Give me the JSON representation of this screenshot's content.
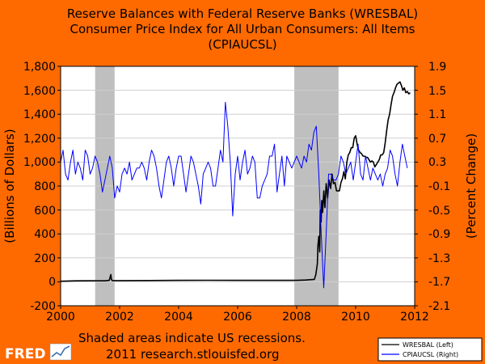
{
  "chart_data": {
    "type": "line",
    "title_lines": [
      "Reserve Balances with Federal Reserve Banks (WRESBAL)",
      "Consumer Price Index for All Urban Consumers: All Items",
      "(CPIAUCSL)"
    ],
    "xlabel": "",
    "ylabel_left": "(Billions of Dollars)",
    "ylabel_right": "(Percent Change)",
    "xlim": [
      2000,
      2012
    ],
    "ylim_left": [
      -200,
      1800
    ],
    "ylim_right": [
      -2.1,
      1.9
    ],
    "x_ticks": [
      "2000",
      "2002",
      "2004",
      "2006",
      "2008",
      "2010",
      "2012"
    ],
    "x_tick_values": [
      2000,
      2002,
      2004,
      2006,
      2008,
      2010,
      2012
    ],
    "y_left_ticks": [
      "-200",
      "0",
      "200",
      "400",
      "600",
      "800",
      "1,000",
      "1,200",
      "1,400",
      "1,600",
      "1,800"
    ],
    "y_left_tick_values": [
      -200,
      0,
      200,
      400,
      600,
      800,
      1000,
      1200,
      1400,
      1600,
      1800
    ],
    "y_right_ticks": [
      "-2.1",
      "-1.7",
      "-1.3",
      "-0.9",
      "-0.5",
      "-0.1",
      "0.3",
      "0.7",
      "1.1",
      "1.5",
      "1.9"
    ],
    "y_right_tick_values": [
      -2.1,
      -1.7,
      -1.3,
      -0.9,
      -0.5,
      -0.1,
      0.3,
      0.7,
      1.1,
      1.5,
      1.9
    ],
    "grid": true,
    "recessions": [
      [
        2001.17,
        2001.83
      ],
      [
        2007.92,
        2009.42
      ]
    ],
    "series": [
      {
        "name": "WRESBAL (Left)",
        "axis": "left",
        "color": "#000000",
        "x": [
          2000.0,
          2000.5,
          2001.0,
          2001.5,
          2001.65,
          2001.7,
          2001.72,
          2001.75,
          2002.0,
          2003.0,
          2004.0,
          2005.0,
          2006.0,
          2007.0,
          2008.0,
          2008.3,
          2008.6,
          2008.65,
          2008.7,
          2008.72,
          2008.75,
          2008.78,
          2008.8,
          2008.83,
          2008.85,
          2008.88,
          2008.92,
          2008.96,
          2009.0,
          2009.05,
          2009.1,
          2009.15,
          2009.2,
          2009.25,
          2009.3,
          2009.35,
          2009.4,
          2009.45,
          2009.5,
          2009.55,
          2009.6,
          2009.65,
          2009.7,
          2009.75,
          2009.8,
          2009.85,
          2009.9,
          2009.95,
          2010.0,
          2010.05,
          2010.1,
          2010.15,
          2010.2,
          2010.25,
          2010.3,
          2010.35,
          2010.4,
          2010.45,
          2010.5,
          2010.55,
          2010.6,
          2010.65,
          2010.7,
          2010.75,
          2010.8,
          2010.85,
          2010.9,
          2010.95,
          2011.0,
          2011.05,
          2011.1,
          2011.15,
          2011.2,
          2011.25,
          2011.3,
          2011.35,
          2011.4,
          2011.45,
          2011.5,
          2011.55,
          2011.6,
          2011.65,
          2011.7,
          2011.75,
          2011.8,
          2011.85
        ],
        "values": [
          5,
          8,
          9,
          8,
          12,
          60,
          20,
          10,
          10,
          11,
          12,
          13,
          12,
          12,
          12,
          15,
          20,
          60,
          150,
          300,
          380,
          250,
          600,
          500,
          680,
          580,
          760,
          620,
          820,
          700,
          850,
          780,
          900,
          820,
          830,
          760,
          760,
          760,
          830,
          860,
          920,
          860,
          1000,
          1060,
          1080,
          1120,
          1120,
          1200,
          1220,
          1150,
          1100,
          1080,
          1070,
          1050,
          1050,
          1040,
          1040,
          1020,
          1000,
          1010,
          1000,
          960,
          980,
          1000,
          1020,
          1060,
          1060,
          1080,
          1160,
          1260,
          1350,
          1400,
          1480,
          1550,
          1580,
          1620,
          1650,
          1660,
          1670,
          1640,
          1600,
          1620,
          1580,
          1590,
          1570,
          1580
        ]
      },
      {
        "name": "CPIAUCSL (Right)",
        "axis": "right",
        "color": "#0000ff",
        "x": [
          2000.0,
          2000.083,
          2000.167,
          2000.25,
          2000.333,
          2000.417,
          2000.5,
          2000.583,
          2000.667,
          2000.75,
          2000.833,
          2000.917,
          2001.0,
          2001.083,
          2001.167,
          2001.25,
          2001.333,
          2001.417,
          2001.5,
          2001.583,
          2001.667,
          2001.75,
          2001.833,
          2001.917,
          2002.0,
          2002.083,
          2002.167,
          2002.25,
          2002.333,
          2002.417,
          2002.5,
          2002.583,
          2002.667,
          2002.75,
          2002.833,
          2002.917,
          2003.0,
          2003.083,
          2003.167,
          2003.25,
          2003.333,
          2003.417,
          2003.5,
          2003.583,
          2003.667,
          2003.75,
          2003.833,
          2003.917,
          2004.0,
          2004.083,
          2004.167,
          2004.25,
          2004.333,
          2004.417,
          2004.5,
          2004.583,
          2004.667,
          2004.75,
          2004.833,
          2004.917,
          2005.0,
          2005.083,
          2005.167,
          2005.25,
          2005.333,
          2005.417,
          2005.5,
          2005.583,
          2005.667,
          2005.75,
          2005.833,
          2005.917,
          2006.0,
          2006.083,
          2006.167,
          2006.25,
          2006.333,
          2006.417,
          2006.5,
          2006.583,
          2006.667,
          2006.75,
          2006.833,
          2006.917,
          2007.0,
          2007.083,
          2007.167,
          2007.25,
          2007.333,
          2007.417,
          2007.5,
          2007.583,
          2007.667,
          2007.75,
          2007.833,
          2007.917,
          2008.0,
          2008.083,
          2008.167,
          2008.25,
          2008.333,
          2008.417,
          2008.5,
          2008.583,
          2008.667,
          2008.75,
          2008.833,
          2008.917,
          2009.0,
          2009.083,
          2009.167,
          2009.25,
          2009.333,
          2009.417,
          2009.5,
          2009.583,
          2009.667,
          2009.75,
          2009.833,
          2009.917,
          2010.0,
          2010.083,
          2010.167,
          2010.25,
          2010.333,
          2010.417,
          2010.5,
          2010.583,
          2010.667,
          2010.75,
          2010.833,
          2010.917,
          2011.0,
          2011.083,
          2011.167,
          2011.25,
          2011.333,
          2011.417,
          2011.5,
          2011.583,
          2011.667,
          2011.75
        ],
        "values": [
          0.3,
          0.5,
          0.1,
          0.0,
          0.3,
          0.5,
          0.1,
          0.3,
          0.2,
          0.0,
          0.5,
          0.4,
          0.1,
          0.2,
          0.4,
          0.3,
          0.1,
          -0.2,
          0.0,
          0.2,
          0.4,
          0.2,
          -0.3,
          -0.1,
          -0.2,
          0.1,
          0.2,
          0.1,
          0.3,
          0.0,
          0.1,
          0.2,
          0.2,
          0.3,
          0.2,
          0.0,
          0.3,
          0.5,
          0.4,
          0.2,
          -0.1,
          -0.3,
          0.0,
          0.3,
          0.4,
          0.2,
          -0.1,
          0.2,
          0.4,
          0.4,
          0.1,
          -0.2,
          0.1,
          0.4,
          0.3,
          0.1,
          -0.1,
          -0.4,
          0.1,
          0.2,
          0.3,
          0.2,
          -0.1,
          -0.1,
          0.2,
          0.5,
          0.3,
          1.3,
          0.9,
          0.3,
          -0.6,
          0.1,
          0.4,
          0.0,
          0.3,
          0.5,
          0.1,
          0.2,
          0.4,
          0.3,
          -0.3,
          -0.3,
          -0.1,
          0.0,
          0.1,
          0.4,
          0.4,
          0.6,
          -0.2,
          0.1,
          0.4,
          -0.1,
          0.4,
          0.3,
          0.2,
          0.3,
          0.4,
          0.3,
          0.2,
          0.4,
          0.3,
          0.6,
          0.5,
          0.8,
          0.9,
          0.1,
          -0.9,
          -1.8,
          -0.9,
          0.1,
          0.1,
          0.0,
          0.0,
          0.1,
          0.4,
          0.3,
          0.1,
          0.2,
          0.3,
          0.0,
          0.3,
          0.6,
          0.1,
          0.0,
          0.4,
          0.2,
          0.0,
          0.2,
          0.1,
          0.0,
          0.1,
          -0.1,
          0.1,
          0.2,
          0.5,
          0.4,
          0.1,
          -0.1,
          0.3,
          0.6,
          0.4,
          0.2
        ]
      }
    ]
  },
  "footer": {
    "note_line1": "Shaded areas indicate US recessions.",
    "note_line2": "2011 research.stlouisfed.org",
    "logo_text": "FRED"
  },
  "legend": {
    "items": [
      "WRESBAL (Left)",
      "CPIAUCSL (Right)"
    ]
  }
}
